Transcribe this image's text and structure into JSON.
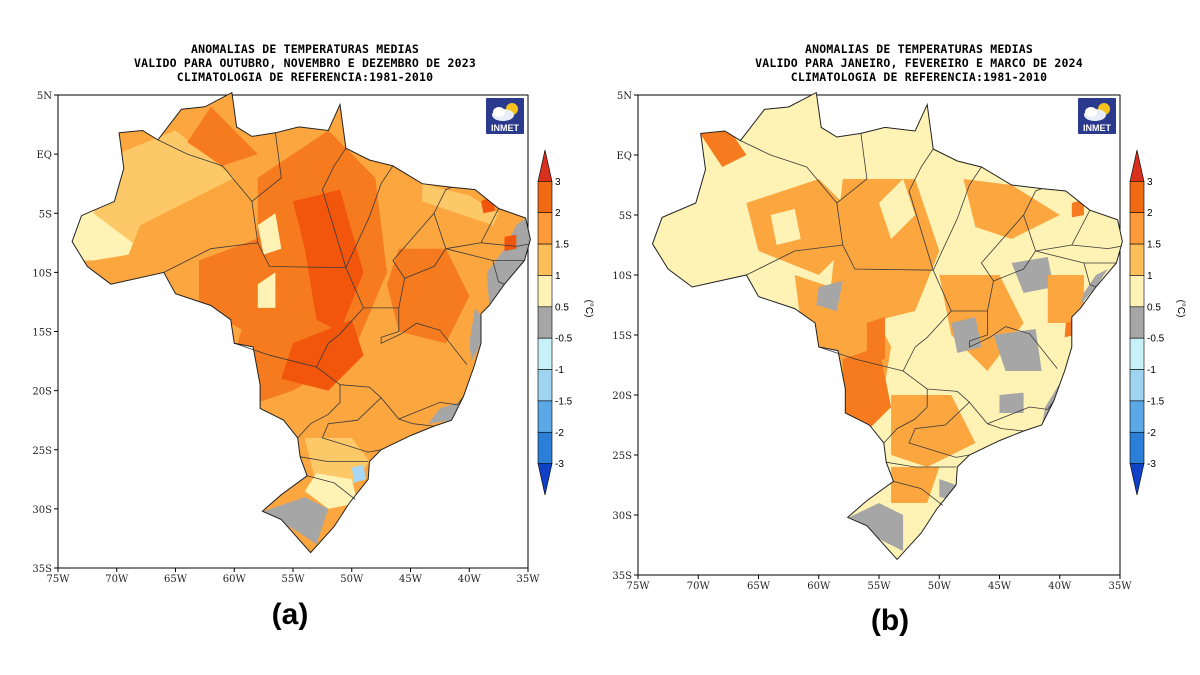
{
  "panels": [
    {
      "id": "a",
      "title_lines": [
        "ANOMALIAS DE TEMPERATURAS MEDIAS",
        "VALIDO PARA OUTUBRO, NOVEMBRO E DEZEMBRO DE 2023",
        "CLIMATOLOGIA DE REFERENCIA:1981-2010"
      ],
      "label": "(a)",
      "logo_text": "INMET",
      "lat_ticks": [
        "5N",
        "EQ",
        "5S",
        "10S",
        "15S",
        "20S",
        "25S",
        "30S",
        "35S"
      ],
      "lon_ticks": [
        "75W",
        "70W",
        "65W",
        "60W",
        "55W",
        "50W",
        "45W",
        "40W",
        "35W"
      ],
      "colorbar_unit": "(°C)",
      "colorbar_labels": [
        "3",
        "2",
        "1.5",
        "1",
        "0.5",
        "-0.5",
        "-1",
        "-1.5",
        "-2",
        "-3"
      ],
      "dominant_anomaly": "warm"
    },
    {
      "id": "b",
      "title_lines": [
        "ANOMALIAS DE TEMPERATURAS MEDIAS",
        "VALIDO PARA JANEIRO, FEVEREIRO E MARCO DE 2024",
        "CLIMATOLOGIA DE REFERENCIA:1981-2010"
      ],
      "label": "(b)",
      "logo_text": "INMET",
      "lat_ticks": [
        "5N",
        "EQ",
        "5S",
        "10S",
        "15S",
        "20S",
        "25S",
        "30S",
        "35S"
      ],
      "lon_ticks": [
        "75W",
        "70W",
        "65W",
        "60W",
        "55W",
        "50W",
        "45W",
        "40W",
        "35W"
      ],
      "colorbar_unit": "(°C)",
      "colorbar_labels": [
        "3",
        "2",
        "1.5",
        "1",
        "0.5",
        "-0.5",
        "-1",
        "-1.5",
        "-2",
        "-3"
      ],
      "dominant_anomaly": "mild"
    }
  ],
  "colorbar_colors": [
    "#d7301f",
    "#f16913",
    "#fd9b3b",
    "#fdbf5a",
    "#fef3b5",
    "#a6a6a6",
    "#c8f0f8",
    "#9fd4f0",
    "#5aa9e6",
    "#2b7fd8",
    "#1042c8"
  ],
  "map_colors": {
    "c3": "#f2560d",
    "c2": "#f67a1e",
    "c15": "#fca640",
    "c1": "#fdc968",
    "c05": "#fef3b5",
    "c0": "#a6a6a6",
    "cool": "#a8d8f5"
  }
}
